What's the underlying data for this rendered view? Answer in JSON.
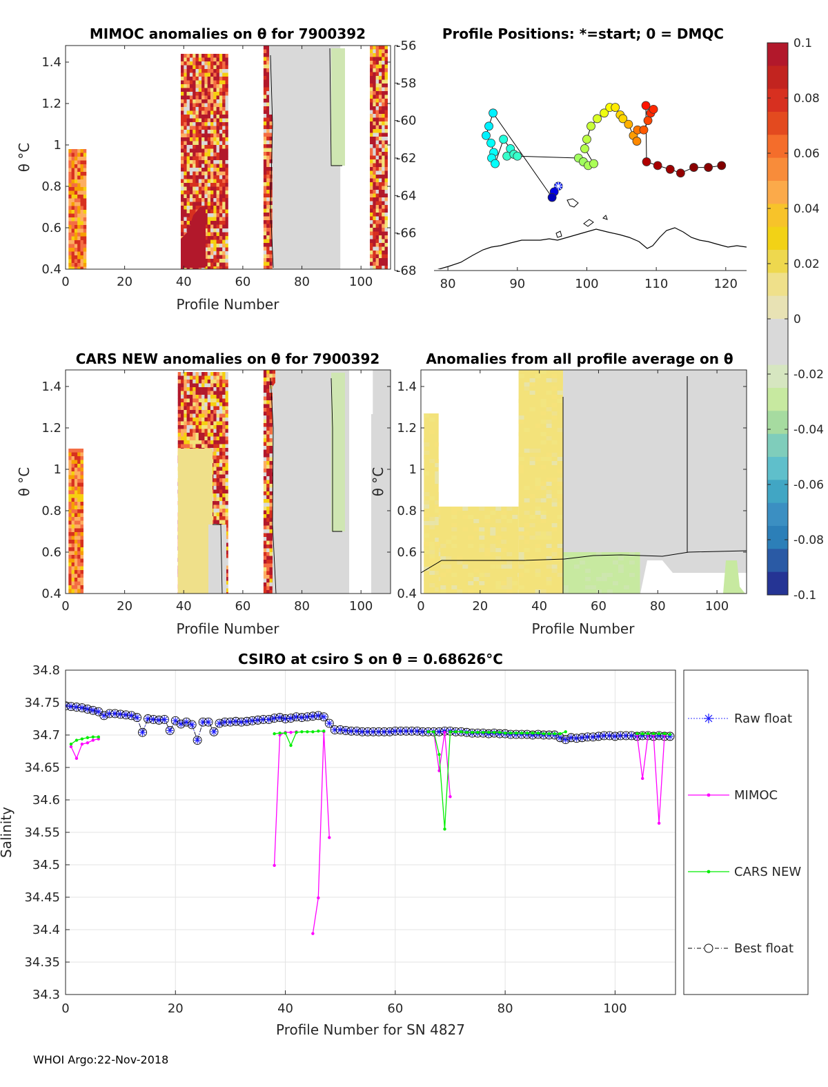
{
  "figure": {
    "footer": "WHOI Argo:22-Nov-2018"
  },
  "panel_mimoc": {
    "title": "MIMOC anomalies on θ  for 7900392",
    "xlabel": "Profile Number",
    "ylabel": "θ °C",
    "xticks": [
      "0",
      "20",
      "40",
      "60",
      "80",
      "100"
    ],
    "yticks": [
      "1.4",
      "1.2",
      "1",
      "0.8",
      "0.6",
      "0.4"
    ]
  },
  "panel_positions": {
    "title": "Profile Positions: *=start; 0 = DMQC",
    "xticks": [
      "80",
      "90",
      "100",
      "110",
      "120"
    ],
    "yticks": [
      "-56",
      "-58",
      "-60",
      "-62",
      "-64",
      "-66",
      "-68"
    ]
  },
  "panel_cars": {
    "title": "CARS NEW anomalies on θ for 7900392",
    "xlabel": "Profile Number",
    "ylabel": "θ °C",
    "xticks": [
      "0",
      "20",
      "40",
      "60",
      "80",
      "100"
    ],
    "yticks": [
      "1.4",
      "1.2",
      "1",
      "0.8",
      "0.6",
      "0.4"
    ]
  },
  "panel_allavg": {
    "title": "Anomalies from all profile average on θ",
    "xlabel": "Profile Number",
    "ylabel": "θ °C",
    "xticks": [
      "0",
      "20",
      "40",
      "60",
      "80",
      "100"
    ],
    "yticks": [
      "1.4",
      "1.2",
      "1",
      "0.8",
      "0.6",
      "0.4"
    ]
  },
  "colorbar": {
    "ticks": [
      "0.1",
      "0.08",
      "0.06",
      "0.04",
      "0.02",
      "0",
      "-0.02",
      "-0.04",
      "-0.06",
      "-0.08",
      "-0.1"
    ],
    "colors": [
      "#b2182b",
      "#d7301f",
      "#f46d43",
      "#fdae61",
      "#f6d010",
      "#f3e27a",
      "#d9d9d9",
      "#c7e9a0",
      "#7fcdbb",
      "#41b6c4",
      "#2c7fb8",
      "#253494"
    ]
  },
  "chart_data": [
    {
      "type": "heatmap",
      "id": "mimoc",
      "title": "MIMOC anomalies on θ  for 7900392",
      "xlabel": "Profile Number",
      "ylabel": "θ °C",
      "xlim": [
        0,
        110
      ],
      "ylim": [
        0.4,
        1.48
      ],
      "regions": [
        {
          "x0": 1,
          "x1": 7,
          "ytop": 0.98,
          "style": "orange"
        },
        {
          "x0": 39,
          "x1": 55,
          "ytop": 1.44,
          "style": "red"
        },
        {
          "x0": 67,
          "x1": 70,
          "ytop": 1.48,
          "style": "red"
        },
        {
          "x0": 70,
          "x1": 93,
          "ytop": 1.48,
          "style": "grey"
        },
        {
          "x0": 103,
          "x1": 109,
          "ytop": 1.48,
          "style": "red"
        }
      ]
    },
    {
      "type": "scatter",
      "id": "positions",
      "title": "Profile Positions: *=start; 0 = DMQC",
      "xlim": [
        78,
        123
      ],
      "ylim": [
        -68,
        -56
      ],
      "points": [
        {
          "lon": 95.9,
          "lat": -63.5,
          "c": 0.1
        },
        {
          "lon": 95.3,
          "lat": -63.8,
          "c": 0.05
        },
        {
          "lon": 95.0,
          "lat": -64.1,
          "c": 0.0
        },
        {
          "lon": 86.5,
          "lat": -59.6,
          "c": 0.38
        },
        {
          "lon": 85.9,
          "lat": -60.3,
          "c": 0.38
        },
        {
          "lon": 85.5,
          "lat": -60.8,
          "c": 0.38
        },
        {
          "lon": 86.2,
          "lat": -61.2,
          "c": 0.4
        },
        {
          "lon": 86.6,
          "lat": -61.7,
          "c": 0.4
        },
        {
          "lon": 86.3,
          "lat": -62.0,
          "c": 0.4
        },
        {
          "lon": 86.8,
          "lat": -62.3,
          "c": 0.4
        },
        {
          "lon": 88.0,
          "lat": -61.0,
          "c": 0.43
        },
        {
          "lon": 89.0,
          "lat": -61.5,
          "c": 0.43
        },
        {
          "lon": 88.5,
          "lat": -61.9,
          "c": 0.45
        },
        {
          "lon": 89.5,
          "lat": -61.8,
          "c": 0.45
        },
        {
          "lon": 90.0,
          "lat": -61.9,
          "c": 0.45
        },
        {
          "lon": 98.8,
          "lat": -62.0,
          "c": 0.56
        },
        {
          "lon": 99.5,
          "lat": -62.2,
          "c": 0.56
        },
        {
          "lon": 100.2,
          "lat": -62.4,
          "c": 0.57
        },
        {
          "lon": 101.0,
          "lat": -62.3,
          "c": 0.57
        },
        {
          "lon": 99.7,
          "lat": -61.5,
          "c": 0.58
        },
        {
          "lon": 100.0,
          "lat": -61.0,
          "c": 0.59
        },
        {
          "lon": 100.6,
          "lat": -60.3,
          "c": 0.6
        },
        {
          "lon": 101.5,
          "lat": -59.9,
          "c": 0.62
        },
        {
          "lon": 102.5,
          "lat": -59.6,
          "c": 0.64
        },
        {
          "lon": 103.3,
          "lat": -59.3,
          "c": 0.66
        },
        {
          "lon": 104.1,
          "lat": -59.3,
          "c": 0.68
        },
        {
          "lon": 104.8,
          "lat": -59.7,
          "c": 0.7
        },
        {
          "lon": 105.2,
          "lat": -59.9,
          "c": 0.7
        },
        {
          "lon": 106.0,
          "lat": -60.2,
          "c": 0.74
        },
        {
          "lon": 106.7,
          "lat": -60.8,
          "c": 0.76
        },
        {
          "lon": 107.2,
          "lat": -61.1,
          "c": 0.78
        },
        {
          "lon": 107.3,
          "lat": -60.5,
          "c": 0.8
        },
        {
          "lon": 108.2,
          "lat": -60.5,
          "c": 0.83
        },
        {
          "lon": 108.8,
          "lat": -60.0,
          "c": 0.85
        },
        {
          "lon": 109.2,
          "lat": -59.6,
          "c": 0.88
        },
        {
          "lon": 109.6,
          "lat": -59.4,
          "c": 0.88
        },
        {
          "lon": 108.5,
          "lat": -59.2,
          "c": 0.9
        },
        {
          "lon": 108.6,
          "lat": -62.2,
          "c": 0.95
        },
        {
          "lon": 110.2,
          "lat": -62.4,
          "c": 0.96
        },
        {
          "lon": 112.0,
          "lat": -62.6,
          "c": 0.97
        },
        {
          "lon": 113.5,
          "lat": -62.8,
          "c": 0.98
        },
        {
          "lon": 115.4,
          "lat": -62.5,
          "c": 0.99
        },
        {
          "lon": 117.5,
          "lat": -62.5,
          "c": 0.99
        },
        {
          "lon": 119.4,
          "lat": -62.4,
          "c": 1.0
        }
      ]
    },
    {
      "type": "heatmap",
      "id": "cars",
      "title": "CARS NEW anomalies on θ for 7900392",
      "xlabel": "Profile Number",
      "ylabel": "θ °C",
      "xlim": [
        0,
        110
      ],
      "ylim": [
        0.4,
        1.48
      ],
      "regions": [
        {
          "x0": 1,
          "x1": 6,
          "ytop": 1.1,
          "style": "orange"
        },
        {
          "x0": 38,
          "x1": 55,
          "ytop": 1.47,
          "style": "mixed"
        },
        {
          "x0": 67,
          "x1": 71,
          "ytop": 1.48,
          "style": "red"
        },
        {
          "x0": 71,
          "x1": 96,
          "ytop": 1.48,
          "style": "grey"
        },
        {
          "x0": 104,
          "x1": 110,
          "ytop": 1.48,
          "style": "grey"
        }
      ]
    },
    {
      "type": "heatmap",
      "id": "allavg",
      "title": "Anomalies from all profile average on θ",
      "xlabel": "Profile Number",
      "ylabel": "θ °C",
      "xlim": [
        0,
        110
      ],
      "ylim": [
        0.4,
        1.48
      ],
      "regions": [
        {
          "x0": 1,
          "x1": 33,
          "ytop": 0.82,
          "style": "yellow"
        },
        {
          "x0": 1,
          "x1": 6,
          "ytop": 1.27,
          "style": "yellow"
        },
        {
          "x0": 33,
          "x1": 48,
          "ytop": 1.48,
          "style": "yellow"
        },
        {
          "x0": 48,
          "x1": 110,
          "ytop": 1.48,
          "style": "grey"
        },
        {
          "x0": 48,
          "x1": 74,
          "ytop": 0.6,
          "style": "green"
        }
      ]
    },
    {
      "type": "line",
      "id": "salinity",
      "title": "CSIRO at csiro S on θ = 0.68626°C",
      "xlabel": "Profile Number for SN 4827",
      "ylabel": "Salinity",
      "xlim": [
        0,
        111
      ],
      "ylim": [
        34.3,
        34.8
      ],
      "xticks": [
        "0",
        "20",
        "40",
        "60",
        "80",
        "100"
      ],
      "yticks": [
        "34.8",
        "34.75",
        "34.7",
        "34.65",
        "34.6",
        "34.55",
        "34.5",
        "34.45",
        "34.4",
        "34.35",
        "34.3"
      ],
      "legend": [
        "Raw float",
        "MIMOC",
        "CARS NEW",
        "Best float"
      ],
      "series": [
        {
          "name": "Raw float",
          "x": [
            0,
            1,
            2,
            3,
            4,
            5,
            6,
            7,
            8,
            9,
            10,
            11,
            12,
            13,
            14,
            15,
            16,
            17,
            18,
            19,
            20,
            21,
            22,
            23,
            24,
            25,
            26,
            27,
            28,
            29,
            30,
            31,
            32,
            33,
            34,
            35,
            36,
            37,
            38,
            39,
            40,
            41,
            42,
            43,
            44,
            45,
            46,
            47,
            48,
            49,
            50,
            51,
            52,
            53,
            54,
            55,
            56,
            57,
            58,
            59,
            60,
            61,
            62,
            63,
            64,
            65,
            66,
            67,
            68,
            69,
            70,
            71,
            72,
            73,
            74,
            75,
            76,
            77,
            78,
            79,
            80,
            81,
            82,
            83,
            84,
            85,
            86,
            87,
            88,
            89,
            90,
            91,
            92,
            93,
            94,
            95,
            96,
            97,
            98,
            99,
            100,
            101,
            102,
            103,
            104,
            105,
            106,
            107,
            108,
            109,
            110
          ],
          "y": [
            34.745,
            34.744,
            34.743,
            34.742,
            34.74,
            34.738,
            34.736,
            34.73,
            34.733,
            34.733,
            34.732,
            34.731,
            34.73,
            34.727,
            34.704,
            34.725,
            34.724,
            34.723,
            34.724,
            34.707,
            34.722,
            34.717,
            34.72,
            34.716,
            34.692,
            34.72,
            34.72,
            34.705,
            34.718,
            34.72,
            34.72,
            34.721,
            34.72,
            34.721,
            34.722,
            34.723,
            34.724,
            34.724,
            34.726,
            34.727,
            34.725,
            34.726,
            34.728,
            34.727,
            34.728,
            34.729,
            34.73,
            34.728,
            34.718,
            34.708,
            34.708,
            34.707,
            34.706,
            34.706,
            34.705,
            34.705,
            34.705,
            34.705,
            34.705,
            34.705,
            34.706,
            34.706,
            34.706,
            34.706,
            34.706,
            34.705,
            34.705,
            34.705,
            34.705,
            34.706,
            34.706,
            34.705,
            34.705,
            34.704,
            34.703,
            34.703,
            34.703,
            34.702,
            34.703,
            34.702,
            34.702,
            34.701,
            34.701,
            34.701,
            34.701,
            34.7,
            34.701,
            34.7,
            34.7,
            34.7,
            34.696,
            34.693,
            34.696,
            34.695,
            34.696,
            34.697,
            34.697,
            34.698,
            34.699,
            34.699,
            34.698,
            34.699,
            34.699,
            34.699,
            34.698,
            34.699,
            34.699,
            34.698,
            34.699,
            34.698,
            34.698
          ]
        },
        {
          "name": "MIMOC",
          "segments": [
            {
              "x": [
                1,
                2,
                3,
                4,
                5,
                6
              ],
              "y": [
                34.682,
                34.664,
                34.686,
                34.688,
                34.692,
                34.694
              ]
            },
            {
              "x": [
                38,
                39,
                40,
                41,
                42
              ],
              "y": [
                34.499,
                34.7,
                34.704,
                34.704,
                34.705
              ]
            },
            {
              "x": [
                45,
                46,
                47,
                48
              ],
              "y": [
                34.394,
                34.449,
                34.705,
                34.542
              ]
            },
            {
              "x": [
                67,
                68,
                69,
                70
              ],
              "y": [
                34.705,
                34.645,
                34.704,
                34.605
              ]
            },
            {
              "x": [
                104,
                105,
                106
              ],
              "y": [
                34.7,
                34.633,
                34.701
              ]
            },
            {
              "x": [
                107,
                108,
                109
              ],
              "y": [
                34.7,
                34.564,
                34.7
              ]
            }
          ]
        },
        {
          "name": "CARS NEW",
          "segments": [
            {
              "x": [
                1,
                2,
                3,
                4,
                5,
                6
              ],
              "y": [
                34.686,
                34.692,
                34.694,
                34.696,
                34.697,
                34.697
              ]
            },
            {
              "x": [
                38,
                39,
                40,
                41,
                42,
                43,
                44,
                45,
                46,
                47
              ],
              "y": [
                34.702,
                34.703,
                34.703,
                34.684,
                34.704,
                34.705,
                34.705,
                34.705,
                34.706,
                34.706
              ]
            },
            {
              "x": [
                66,
                67,
                68,
                69,
                70,
                71,
                72,
                73,
                74,
                75,
                76,
                77,
                78,
                79,
                80,
                81,
                82,
                83,
                84,
                85,
                86,
                87,
                88,
                89,
                90,
                91
              ],
              "y": [
                34.705,
                34.705,
                34.67,
                34.555,
                34.705,
                34.705,
                34.705,
                34.704,
                34.704,
                34.704,
                34.704,
                34.704,
                34.704,
                34.704,
                34.703,
                34.703,
                34.703,
                34.703,
                34.703,
                34.703,
                34.703,
                34.702,
                34.702,
                34.702,
                34.702,
                34.705
              ]
            },
            {
              "x": [
                104,
                105,
                106,
                107,
                108,
                109,
                110
              ],
              "y": [
                34.702,
                34.702,
                34.702,
                34.702,
                34.702,
                34.702,
                34.701
              ]
            }
          ]
        }
      ]
    }
  ]
}
